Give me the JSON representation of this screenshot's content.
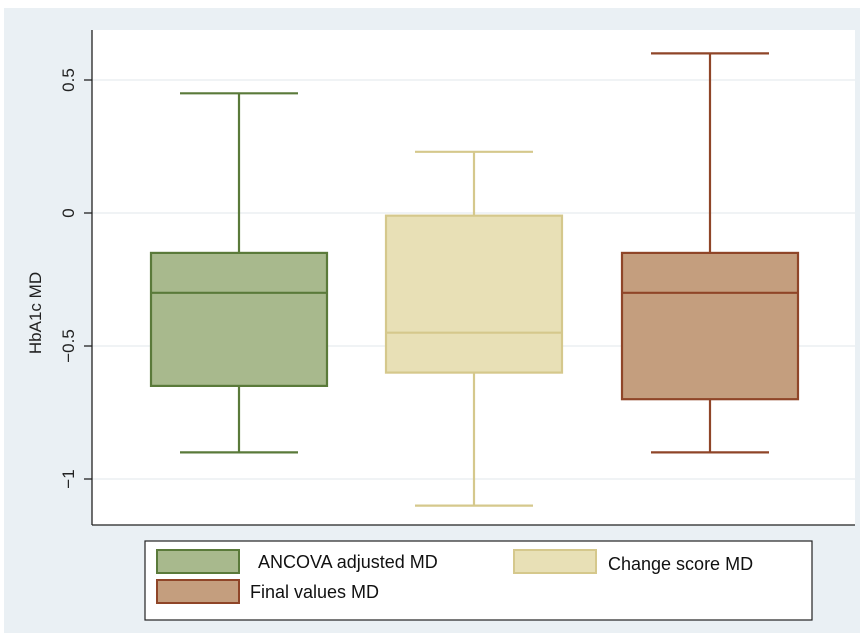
{
  "chart_data": {
    "type": "boxplot",
    "title": "",
    "xlabel": "",
    "ylabel": "HbA1c MD",
    "ylim": [
      -1.2,
      0.7
    ],
    "yticks": [
      {
        "value": 0.5,
        "label": "0.5"
      },
      {
        "value": 0,
        "label": "0"
      },
      {
        "value": -0.5,
        "label": "−0.5"
      },
      {
        "value": -1,
        "label": "−1"
      }
    ],
    "grid": true,
    "legend_position": "bottom",
    "series": [
      {
        "name": "ANCOVA adjusted MD",
        "color": "#a8b98d",
        "edge": "#5a7a3a",
        "whisker_low": -0.9,
        "q1": -0.65,
        "median": -0.3,
        "q3": -0.15,
        "whisker_high": 0.45
      },
      {
        "name": "Change score MD",
        "color": "#e8e0b6",
        "edge": "#d5c88c",
        "whisker_low": -1.1,
        "q1": -0.6,
        "median": -0.45,
        "q3": -0.01,
        "whisker_high": 0.23
      },
      {
        "name": "Final values MD",
        "color": "#c49e7e",
        "edge": "#8f4528",
        "whisker_low": -0.9,
        "q1": -0.7,
        "median": -0.3,
        "q3": -0.15,
        "whisker_high": 0.6
      }
    ]
  }
}
